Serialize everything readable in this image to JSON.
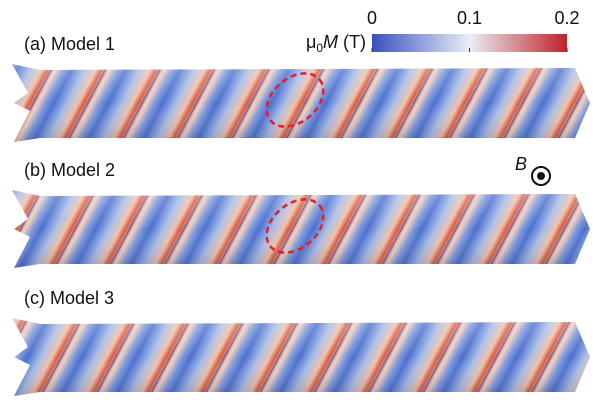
{
  "panels": [
    {
      "label": "(a) Model 1"
    },
    {
      "label": "(b) Model 2"
    },
    {
      "label": "(c) Model 3"
    }
  ],
  "colorbar": {
    "label_symbol": "μ",
    "label_subscript": "0",
    "label_variable": "M",
    "label_unit": "(T)",
    "range": [
      0,
      0.2
    ],
    "ticks": [
      0,
      0.1,
      0.2
    ]
  },
  "field_label": "B"
}
